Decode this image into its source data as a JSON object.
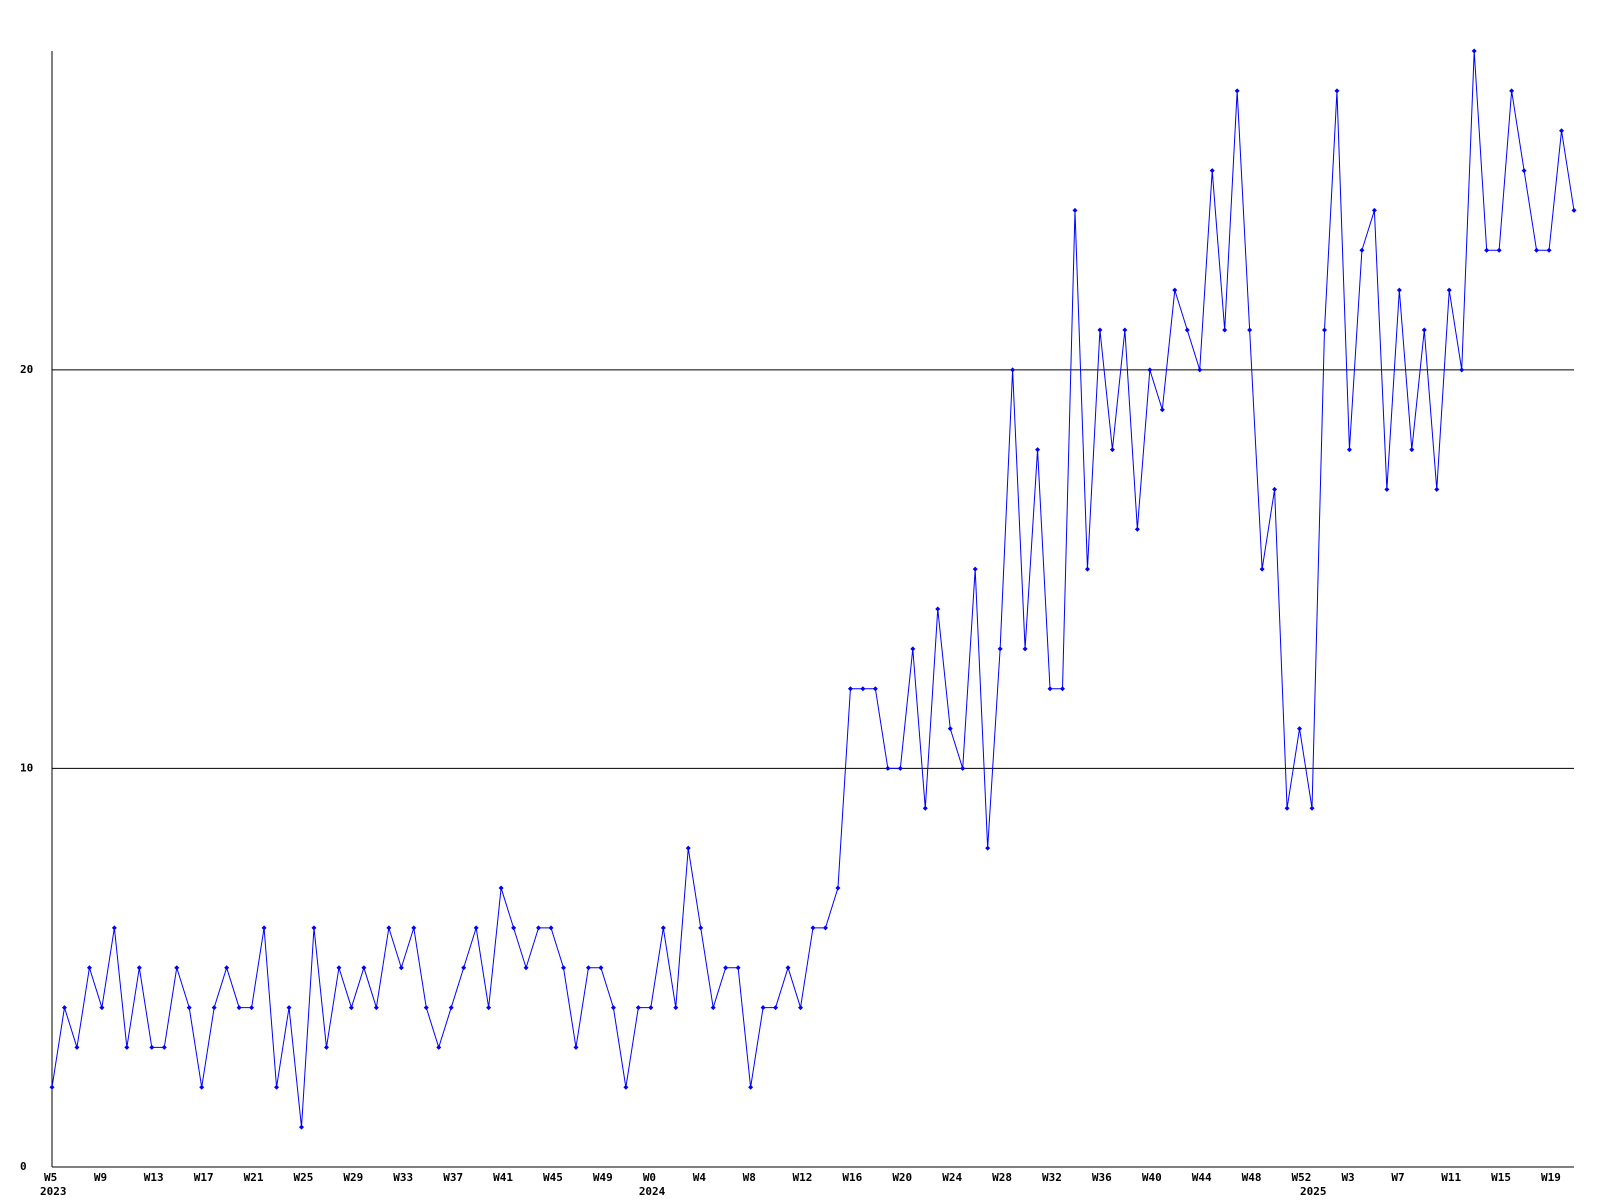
{
  "chart_data": {
    "type": "line",
    "color": "#0000ff",
    "grid": true,
    "ylim": [
      0,
      28
    ],
    "yticks": [
      0,
      10,
      20
    ],
    "categories": [
      "W5",
      null,
      null,
      null,
      "W9",
      null,
      null,
      null,
      "W13",
      null,
      null,
      null,
      "W17",
      null,
      null,
      null,
      "W21",
      null,
      null,
      null,
      "W25",
      null,
      null,
      null,
      "W29",
      null,
      null,
      null,
      "W33",
      null,
      null,
      null,
      "W37",
      null,
      null,
      null,
      "W41",
      null,
      null,
      null,
      "W45",
      null,
      null,
      null,
      "W49",
      null,
      null,
      null,
      "W0",
      null,
      null,
      null,
      "W4",
      null,
      null,
      null,
      "W8",
      null,
      null,
      null,
      "W12",
      null,
      null,
      null,
      "W16",
      null,
      null,
      null,
      "W20",
      null,
      null,
      null,
      "W24",
      null,
      null,
      null,
      "W28",
      null,
      null,
      null,
      "W32",
      null,
      null,
      null,
      "W36",
      null,
      null,
      null,
      "W40",
      null,
      null,
      null,
      "W44",
      null,
      null,
      null,
      "W48",
      null,
      null,
      null,
      "W52",
      null,
      null,
      null,
      "W3",
      null,
      null,
      null,
      "W7",
      null,
      null,
      null,
      "W11",
      null,
      null,
      null,
      "W15",
      null,
      null,
      null,
      "W19",
      null,
      null
    ],
    "category_years": [
      "2023",
      null,
      null,
      null,
      null,
      null,
      null,
      null,
      null,
      null,
      null,
      null,
      null,
      null,
      null,
      null,
      null,
      null,
      null,
      null,
      null,
      null,
      null,
      null,
      null,
      null,
      null,
      null,
      null,
      null,
      null,
      null,
      null,
      null,
      null,
      null,
      null,
      null,
      null,
      null,
      null,
      null,
      null,
      null,
      null,
      null,
      null,
      null,
      "2024",
      null,
      null,
      null,
      null,
      null,
      null,
      null,
      null,
      null,
      null,
      null,
      null,
      null,
      null,
      null,
      null,
      null,
      null,
      null,
      null,
      null,
      null,
      null,
      null,
      null,
      null,
      null,
      null,
      null,
      null,
      null,
      null,
      null,
      null,
      null,
      null,
      null,
      null,
      null,
      null,
      null,
      null,
      null,
      null,
      null,
      null,
      null,
      null,
      null,
      null,
      null,
      null,
      "2025",
      null,
      null,
      null,
      null,
      null,
      null,
      null,
      null,
      null,
      null,
      null,
      null,
      null,
      null,
      null,
      null,
      null,
      null,
      null,
      null,
      null
    ],
    "values": [
      2,
      4,
      3,
      5,
      4,
      6,
      3,
      5,
      3,
      3,
      5,
      4,
      2,
      4,
      5,
      4,
      4,
      6,
      2,
      4,
      1,
      6,
      3,
      5,
      4,
      5,
      4,
      6,
      5,
      6,
      4,
      3,
      4,
      5,
      6,
      4,
      7,
      6,
      5,
      6,
      6,
      5,
      3,
      5,
      5,
      4,
      2,
      4,
      4,
      6,
      4,
      8,
      6,
      4,
      5,
      5,
      2,
      4,
      4,
      5,
      4,
      6,
      6,
      7,
      12,
      12,
      12,
      10,
      10,
      13,
      9,
      14,
      11,
      10,
      15,
      8,
      13,
      20,
      13,
      18,
      12,
      12,
      24,
      15,
      21,
      18,
      21,
      16,
      20,
      19,
      22,
      21,
      20,
      25,
      21,
      27,
      21,
      15,
      17,
      9,
      11,
      9,
      21,
      27,
      18,
      23,
      24,
      17,
      22,
      18,
      21,
      17,
      22,
      20,
      28,
      23,
      23,
      27,
      25,
      23,
      23,
      26,
      24
    ]
  }
}
